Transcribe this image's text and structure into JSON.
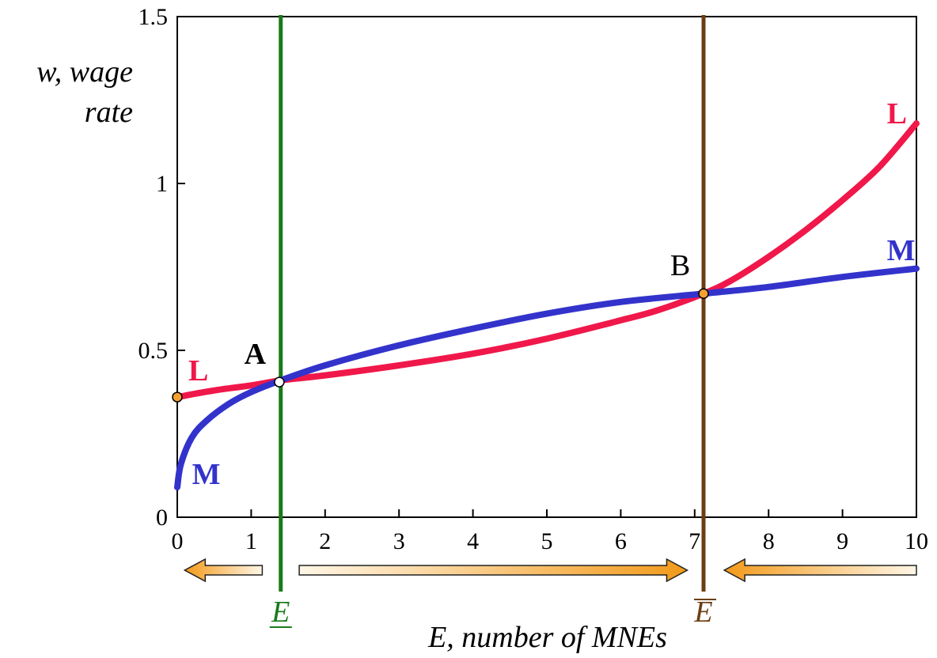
{
  "chart_data": {
    "type": "line",
    "title": "",
    "xlabel": "E, number of MNEs",
    "ylabel_line1": "w, wage",
    "ylabel_line2": "rate",
    "xlim": [
      0,
      10
    ],
    "ylim": [
      0,
      1.5
    ],
    "x_ticks": [
      0,
      1,
      2,
      3,
      4,
      5,
      6,
      7,
      8,
      9,
      10
    ],
    "x_tick_labels": [
      "0",
      "1",
      "2",
      "3",
      "4",
      "5",
      "6",
      "7",
      "8",
      "9",
      "10"
    ],
    "y_ticks": [
      0,
      0.5,
      1,
      1.5
    ],
    "y_tick_labels": [
      "0",
      "0.5",
      "1",
      "1.5"
    ],
    "grid": false,
    "series": [
      {
        "name": "L",
        "color": "#f0184a",
        "x": [
          0,
          0.5,
          1,
          1.4,
          2,
          3,
          4,
          5,
          6,
          6.5,
          7.12,
          7.5,
          8,
          8.5,
          9,
          9.5,
          10
        ],
        "y": [
          0.36,
          0.38,
          0.395,
          0.41,
          0.425,
          0.455,
          0.49,
          0.535,
          0.59,
          0.62,
          0.67,
          0.71,
          0.78,
          0.86,
          0.95,
          1.05,
          1.18
        ]
      },
      {
        "name": "M",
        "color": "#3333cc",
        "x": [
          0,
          0.05,
          0.2,
          0.4,
          0.7,
          1.0,
          1.4,
          2,
          3,
          4,
          5,
          6,
          7.12,
          8,
          9,
          10
        ],
        "y": [
          0.09,
          0.16,
          0.24,
          0.29,
          0.34,
          0.375,
          0.41,
          0.455,
          0.515,
          0.565,
          0.61,
          0.645,
          0.67,
          0.69,
          0.72,
          0.745
        ]
      }
    ],
    "series_labels": [
      {
        "text": "L",
        "series": "L",
        "x": 0.15,
        "y": 0.41
      },
      {
        "text": "M",
        "series": "M",
        "x": 0.2,
        "y": 0.1
      },
      {
        "text": "L",
        "series": "L",
        "x": 9.6,
        "y": 1.18
      },
      {
        "text": "M",
        "series": "M",
        "x": 9.6,
        "y": 0.77
      }
    ],
    "points": [
      {
        "label": "A",
        "x": 1.38,
        "y": 0.405,
        "fill": "#ffffff",
        "label_dx": -1,
        "label_dy": 0.05
      },
      {
        "label": "B",
        "x": 7.12,
        "y": 0.67,
        "fill": "#f5a031",
        "label_dx": -1,
        "label_dy": 0.05
      },
      {
        "label": "",
        "x": 0,
        "y": 0.36,
        "fill": "#f5a031"
      }
    ],
    "vertical_lines": [
      {
        "name": "E-lower",
        "x": 1.4,
        "color": "#1a7a1a",
        "label": "E",
        "decoration": "underline"
      },
      {
        "name": "E-upper",
        "x": 7.12,
        "color": "#6b3e12",
        "label": "E",
        "decoration": "overline"
      }
    ],
    "arrows": [
      {
        "direction": "left",
        "from": 1.15,
        "to": 0.1
      },
      {
        "direction": "right",
        "from": 1.65,
        "to": 6.9
      },
      {
        "direction": "left",
        "from": 10,
        "to": 7.4
      }
    ]
  }
}
